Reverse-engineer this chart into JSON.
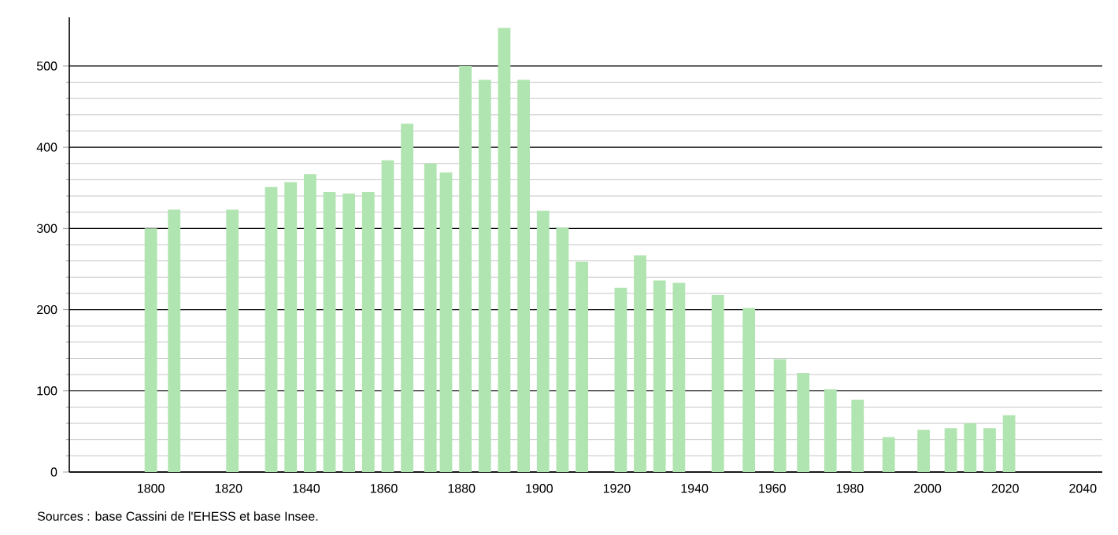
{
  "chart_data": {
    "type": "bar",
    "color": "#b0e4b0",
    "x": [
      1800,
      1806,
      1821,
      1831,
      1836,
      1841,
      1846,
      1851,
      1856,
      1861,
      1866,
      1872,
      1876,
      1881,
      1886,
      1891,
      1896,
      1901,
      1906,
      1911,
      1921,
      1926,
      1931,
      1936,
      1946,
      1954,
      1962,
      1968,
      1975,
      1982,
      1990,
      1999,
      2006,
      2011,
      2016,
      2021
    ],
    "values": [
      300,
      323,
      323,
      351,
      357,
      367,
      345,
      343,
      345,
      384,
      429,
      380,
      369,
      500,
      483,
      547,
      483,
      322,
      301,
      259,
      227,
      267,
      236,
      233,
      218,
      202,
      139,
      122,
      102,
      89,
      43,
      52,
      54,
      60,
      54,
      70
    ],
    "xlim": [
      1779,
      2045
    ],
    "xticks": [
      1800,
      1820,
      1840,
      1860,
      1880,
      1900,
      1920,
      1940,
      1960,
      1980,
      2000,
      2020,
      2040
    ],
    "ylim": [
      0,
      560
    ],
    "yticks": [
      0,
      100,
      200,
      300,
      400,
      500
    ],
    "grid": "y",
    "annotations": [
      "Sources : base Cassini de l'EHESS et base Insee."
    ]
  }
}
